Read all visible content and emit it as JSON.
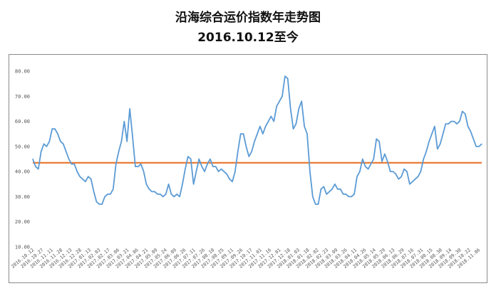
{
  "title": "沿海综合运价指数年走势图",
  "subtitle": "2016.10.12至今",
  "chart_data": {
    "type": "line",
    "ylim": [
      10,
      80
    ],
    "yticks": [
      "10.00",
      "20.00",
      "30.00",
      "40.00",
      "50.00",
      "60.00",
      "70.00",
      "80.00"
    ],
    "grid": false,
    "reference_line": {
      "y": 43.5,
      "color": "#e8742a"
    },
    "series_color": "#5b9bd5",
    "xticks": [
      "2016.10.12",
      "2016.10.27",
      "2016.11.11",
      "2016.11.28",
      "2016.12.13",
      "2016.12.28",
      "2017.01.13",
      "2017.02.03",
      "2017.02.17",
      "2017.03.06",
      "2017.03.21",
      "2017.04.06",
      "2017.04.21",
      "2017.05.09",
      "2017.05.24",
      "2017.06.09",
      "2017.06.26",
      "2017.07.11",
      "2017.07.26",
      "2017.08.10",
      "2017.08.25",
      "2017.09.11",
      "2017.09.26",
      "2017.10.17",
      "2017.11.01",
      "2017.11.16",
      "2017.12.01",
      "2017.12.18",
      "2018.01.03",
      "2018.01.18",
      "2018.02.02",
      "2018.02.23",
      "2018.03.09",
      "2018.03.26",
      "2018.04.11",
      "2018.04.26",
      "2018.05.14",
      "2018.05.29",
      "2018.06.13",
      "2018.06.29",
      "2018.07.16",
      "2018.07.31",
      "2018.08.15",
      "2018.08.30",
      "2018.09.14",
      "2018.09.30",
      "2018.10.22",
      "2018.11.06"
    ],
    "values": [
      45,
      42,
      41,
      48,
      51,
      50,
      52,
      57,
      57,
      55,
      52,
      51,
      48,
      45,
      43,
      43,
      40,
      38,
      37,
      36,
      38,
      37,
      32,
      28,
      27,
      27,
      30,
      31,
      31,
      33,
      43,
      48,
      52,
      60,
      52,
      65,
      54,
      42,
      42,
      43,
      40,
      35,
      33,
      32,
      32,
      31,
      31,
      30,
      31,
      35,
      31,
      30,
      31,
      30,
      35,
      41,
      46,
      45,
      35,
      40,
      45,
      42,
      40,
      43,
      45,
      42,
      42,
      40,
      41,
      40,
      39,
      37,
      36,
      40,
      48,
      55,
      55,
      50,
      46,
      48,
      52,
      55,
      58,
      55,
      58,
      60,
      62,
      60,
      66,
      68,
      70,
      78,
      77,
      65,
      57,
      59,
      65,
      68,
      58,
      55,
      40,
      30,
      27,
      27,
      33,
      34,
      31,
      32,
      33,
      35,
      33,
      33,
      31,
      31,
      30,
      30,
      31,
      38,
      40,
      45,
      42,
      41,
      43,
      45,
      53,
      52,
      44,
      47,
      44,
      40,
      40,
      39,
      37,
      38,
      41,
      40,
      35,
      36,
      37,
      38,
      40,
      45,
      48,
      52,
      55,
      58,
      49,
      51,
      55,
      59,
      59,
      60,
      60,
      59,
      60,
      64,
      63,
      58,
      56,
      53,
      50,
      50,
      51
    ]
  }
}
